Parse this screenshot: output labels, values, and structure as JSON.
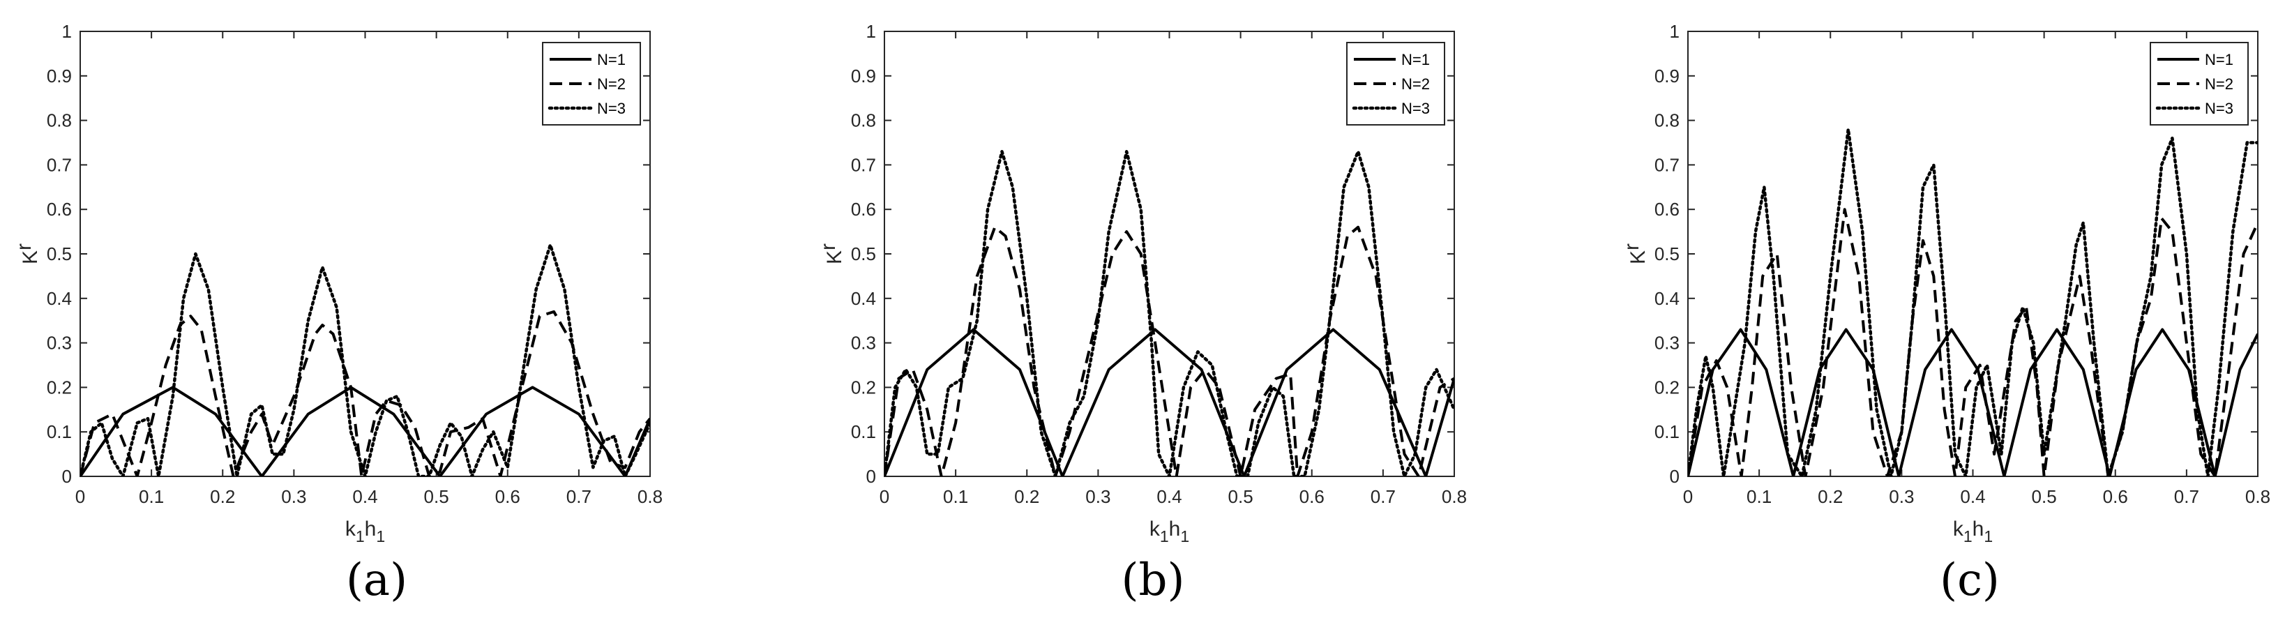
{
  "chart_data": [
    {
      "type": "line",
      "panel_label": "(a)",
      "xlabel": "k_1h_1",
      "ylabel": "K_r",
      "xlim": [
        0,
        0.8
      ],
      "ylim": [
        0,
        1
      ],
      "x_ticks": [
        "0",
        "0.1",
        "0.2",
        "0.3",
        "0.4",
        "0.5",
        "0.6",
        "0.7",
        "0.8"
      ],
      "y_ticks": [
        "0",
        "0.1",
        "0.2",
        "0.3",
        "0.4",
        "0.5",
        "0.6",
        "0.7",
        "0.8",
        "0.9",
        "1"
      ],
      "grid": false,
      "legend_position": "top-right",
      "series": [
        {
          "name": "N=1",
          "style": "solid",
          "x": [
            0,
            0.06,
            0.13,
            0.19,
            0.255,
            0.32,
            0.38,
            0.44,
            0.505,
            0.57,
            0.635,
            0.7,
            0.765,
            0.8
          ],
          "y": [
            0,
            0.14,
            0.2,
            0.14,
            0,
            0.14,
            0.2,
            0.14,
            0,
            0.14,
            0.2,
            0.14,
            0,
            0.13
          ]
        },
        {
          "name": "N=2",
          "style": "dashed",
          "x": [
            0,
            0.02,
            0.045,
            0.065,
            0.08,
            0.1,
            0.12,
            0.14,
            0.155,
            0.17,
            0.19,
            0.215,
            0.24,
            0.255,
            0.27,
            0.3,
            0.33,
            0.34,
            0.355,
            0.38,
            0.395,
            0.415,
            0.43,
            0.45,
            0.47,
            0.49,
            0.505,
            0.52,
            0.545,
            0.565,
            0.59,
            0.62,
            0.645,
            0.665,
            0.69,
            0.72,
            0.745,
            0.765,
            0.785,
            0.8
          ],
          "y": [
            0,
            0.12,
            0.14,
            0.06,
            0,
            0.12,
            0.25,
            0.34,
            0.36,
            0.33,
            0.18,
            0,
            0.1,
            0.14,
            0.07,
            0.18,
            0.32,
            0.34,
            0.32,
            0.2,
            0,
            0.14,
            0.17,
            0.16,
            0.11,
            0,
            0.01,
            0.1,
            0.11,
            0.13,
            0,
            0.2,
            0.36,
            0.37,
            0.3,
            0.14,
            0.03,
            0.02,
            0.1,
            0.13
          ]
        },
        {
          "name": "N=3",
          "style": "dotted",
          "x": [
            0,
            0.015,
            0.03,
            0.045,
            0.06,
            0.08,
            0.095,
            0.11,
            0.13,
            0.145,
            0.162,
            0.18,
            0.2,
            0.22,
            0.24,
            0.255,
            0.27,
            0.285,
            0.3,
            0.32,
            0.34,
            0.36,
            0.38,
            0.4,
            0.415,
            0.43,
            0.445,
            0.46,
            0.475,
            0.49,
            0.505,
            0.52,
            0.535,
            0.55,
            0.565,
            0.58,
            0.6,
            0.62,
            0.64,
            0.66,
            0.68,
            0.7,
            0.72,
            0.735,
            0.75,
            0.765,
            0.78,
            0.8
          ],
          "y": [
            0,
            0.1,
            0.12,
            0.04,
            0,
            0.12,
            0.13,
            0,
            0.18,
            0.4,
            0.5,
            0.42,
            0.2,
            0,
            0.14,
            0.16,
            0.05,
            0.05,
            0.15,
            0.35,
            0.47,
            0.38,
            0.1,
            0,
            0.1,
            0.17,
            0.18,
            0.1,
            0,
            0,
            0.07,
            0.12,
            0.09,
            0,
            0.06,
            0.1,
            0.02,
            0.22,
            0.42,
            0.52,
            0.42,
            0.2,
            0.02,
            0.08,
            0.09,
            0,
            0.05,
            0.12
          ]
        }
      ]
    },
    {
      "type": "line",
      "panel_label": "(b)",
      "xlabel": "k_1h_1",
      "ylabel": "K_r",
      "xlim": [
        0,
        0.8
      ],
      "ylim": [
        0,
        1
      ],
      "x_ticks": [
        "0",
        "0.1",
        "0.2",
        "0.3",
        "0.4",
        "0.5",
        "0.6",
        "0.7",
        "0.8"
      ],
      "y_ticks": [
        "0",
        "0.1",
        "0.2",
        "0.3",
        "0.4",
        "0.5",
        "0.6",
        "0.7",
        "0.8",
        "0.9",
        "1"
      ],
      "grid": false,
      "legend_position": "top-right",
      "series": [
        {
          "name": "N=1",
          "style": "solid",
          "x": [
            0,
            0.06,
            0.125,
            0.19,
            0.25,
            0.315,
            0.38,
            0.445,
            0.505,
            0.565,
            0.63,
            0.695,
            0.76,
            0.8
          ],
          "y": [
            0,
            0.24,
            0.33,
            0.24,
            0,
            0.24,
            0.33,
            0.24,
            0,
            0.24,
            0.33,
            0.24,
            0,
            0.22
          ]
        },
        {
          "name": "N=2",
          "style": "dashed",
          "x": [
            0,
            0.02,
            0.04,
            0.06,
            0.08,
            0.1,
            0.13,
            0.155,
            0.17,
            0.19,
            0.21,
            0.24,
            0.26,
            0.29,
            0.32,
            0.34,
            0.36,
            0.39,
            0.41,
            0.43,
            0.45,
            0.47,
            0.5,
            0.52,
            0.55,
            0.57,
            0.58,
            0.6,
            0.625,
            0.65,
            0.665,
            0.69,
            0.71,
            0.73,
            0.75,
            0.78,
            0.8
          ],
          "y": [
            0,
            0.22,
            0.24,
            0.15,
            0,
            0.12,
            0.45,
            0.56,
            0.54,
            0.42,
            0.2,
            0,
            0.1,
            0.3,
            0.5,
            0.55,
            0.5,
            0.2,
            0,
            0.2,
            0.24,
            0.2,
            0,
            0.15,
            0.22,
            0.23,
            0,
            0.1,
            0.35,
            0.54,
            0.56,
            0.45,
            0.25,
            0.05,
            0,
            0.2,
            0.22
          ]
        },
        {
          "name": "N=3",
          "style": "dotted",
          "x": [
            0,
            0.015,
            0.03,
            0.045,
            0.06,
            0.075,
            0.09,
            0.11,
            0.13,
            0.145,
            0.165,
            0.18,
            0.2,
            0.22,
            0.24,
            0.26,
            0.28,
            0.3,
            0.315,
            0.34,
            0.36,
            0.375,
            0.385,
            0.4,
            0.42,
            0.44,
            0.46,
            0.48,
            0.495,
            0.51,
            0.525,
            0.545,
            0.56,
            0.575,
            0.59,
            0.61,
            0.625,
            0.645,
            0.665,
            0.68,
            0.7,
            0.715,
            0.73,
            0.745,
            0.76,
            0.775,
            0.8
          ],
          "y": [
            0,
            0.2,
            0.24,
            0.2,
            0.05,
            0.05,
            0.2,
            0.22,
            0.35,
            0.6,
            0.73,
            0.65,
            0.4,
            0.1,
            0,
            0.12,
            0.18,
            0.35,
            0.55,
            0.73,
            0.6,
            0.3,
            0.05,
            0,
            0.2,
            0.28,
            0.25,
            0.1,
            0,
            0,
            0.12,
            0.2,
            0.18,
            0,
            0,
            0.15,
            0.35,
            0.65,
            0.73,
            0.65,
            0.35,
            0.1,
            0,
            0.05,
            0.2,
            0.24,
            0.15
          ]
        }
      ]
    },
    {
      "type": "line",
      "panel_label": "(c)",
      "xlabel": "k_1h_1",
      "ylabel": "K_r",
      "xlim": [
        0,
        0.8
      ],
      "ylim": [
        0,
        1
      ],
      "x_ticks": [
        "0",
        "0.1",
        "0.2",
        "0.3",
        "0.4",
        "0.5",
        "0.6",
        "0.7",
        "0.8"
      ],
      "y_ticks": [
        "0",
        "0.1",
        "0.2",
        "0.3",
        "0.4",
        "0.5",
        "0.6",
        "0.7",
        "0.8",
        "0.9",
        "1"
      ],
      "grid": false,
      "legend_position": "top-right",
      "series": [
        {
          "name": "N=1",
          "style": "solid",
          "x": [
            0,
            0.035,
            0.074,
            0.11,
            0.148,
            0.185,
            0.222,
            0.26,
            0.296,
            0.333,
            0.37,
            0.407,
            0.444,
            0.481,
            0.518,
            0.555,
            0.592,
            0.629,
            0.666,
            0.703,
            0.74,
            0.775,
            0.8
          ],
          "y": [
            0,
            0.24,
            0.33,
            0.24,
            0,
            0.24,
            0.33,
            0.24,
            0,
            0.24,
            0.33,
            0.24,
            0,
            0.24,
            0.33,
            0.24,
            0,
            0.24,
            0.33,
            0.24,
            0,
            0.24,
            0.32
          ]
        },
        {
          "name": "N=2",
          "style": "dashed",
          "x": [
            0,
            0.02,
            0.04,
            0.055,
            0.075,
            0.09,
            0.105,
            0.125,
            0.145,
            0.165,
            0.19,
            0.205,
            0.22,
            0.24,
            0.26,
            0.28,
            0.3,
            0.315,
            0.33,
            0.345,
            0.36,
            0.375,
            0.39,
            0.41,
            0.43,
            0.445,
            0.46,
            0.475,
            0.49,
            0.5,
            0.52,
            0.535,
            0.55,
            0.565,
            0.59,
            0.61,
            0.63,
            0.65,
            0.665,
            0.68,
            0.7,
            0.72,
            0.74,
            0.76,
            0.78,
            0.8
          ],
          "y": [
            0,
            0.2,
            0.26,
            0.2,
            0,
            0.2,
            0.45,
            0.5,
            0.2,
            0,
            0.2,
            0.4,
            0.6,
            0.45,
            0.1,
            0,
            0.1,
            0.35,
            0.53,
            0.45,
            0.15,
            0,
            0.2,
            0.25,
            0.05,
            0.2,
            0.35,
            0.38,
            0.2,
            0,
            0.25,
            0.35,
            0.45,
            0.3,
            0,
            0.1,
            0.3,
            0.4,
            0.58,
            0.55,
            0.3,
            0.05,
            0,
            0.25,
            0.5,
            0.57
          ]
        },
        {
          "name": "N=3",
          "style": "dotted",
          "x": [
            0,
            0.012,
            0.025,
            0.035,
            0.05,
            0.065,
            0.08,
            0.095,
            0.107,
            0.12,
            0.14,
            0.16,
            0.18,
            0.2,
            0.225,
            0.245,
            0.265,
            0.285,
            0.3,
            0.315,
            0.33,
            0.345,
            0.36,
            0.375,
            0.39,
            0.405,
            0.42,
            0.44,
            0.455,
            0.47,
            0.485,
            0.5,
            0.515,
            0.53,
            0.545,
            0.555,
            0.57,
            0.59,
            0.61,
            0.63,
            0.65,
            0.665,
            0.68,
            0.7,
            0.715,
            0.73,
            0.745,
            0.765,
            0.785,
            0.8
          ],
          "y": [
            0,
            0.15,
            0.27,
            0.2,
            0,
            0.15,
            0.3,
            0.55,
            0.65,
            0.45,
            0.05,
            0,
            0.15,
            0.45,
            0.78,
            0.55,
            0.15,
            0,
            0.1,
            0.35,
            0.65,
            0.7,
            0.4,
            0.05,
            0,
            0.2,
            0.25,
            0.05,
            0.3,
            0.38,
            0.3,
            0.05,
            0.2,
            0.35,
            0.52,
            0.57,
            0.3,
            0,
            0.1,
            0.3,
            0.45,
            0.7,
            0.76,
            0.5,
            0.15,
            0,
            0.2,
            0.55,
            0.75,
            0.75
          ]
        }
      ]
    }
  ]
}
